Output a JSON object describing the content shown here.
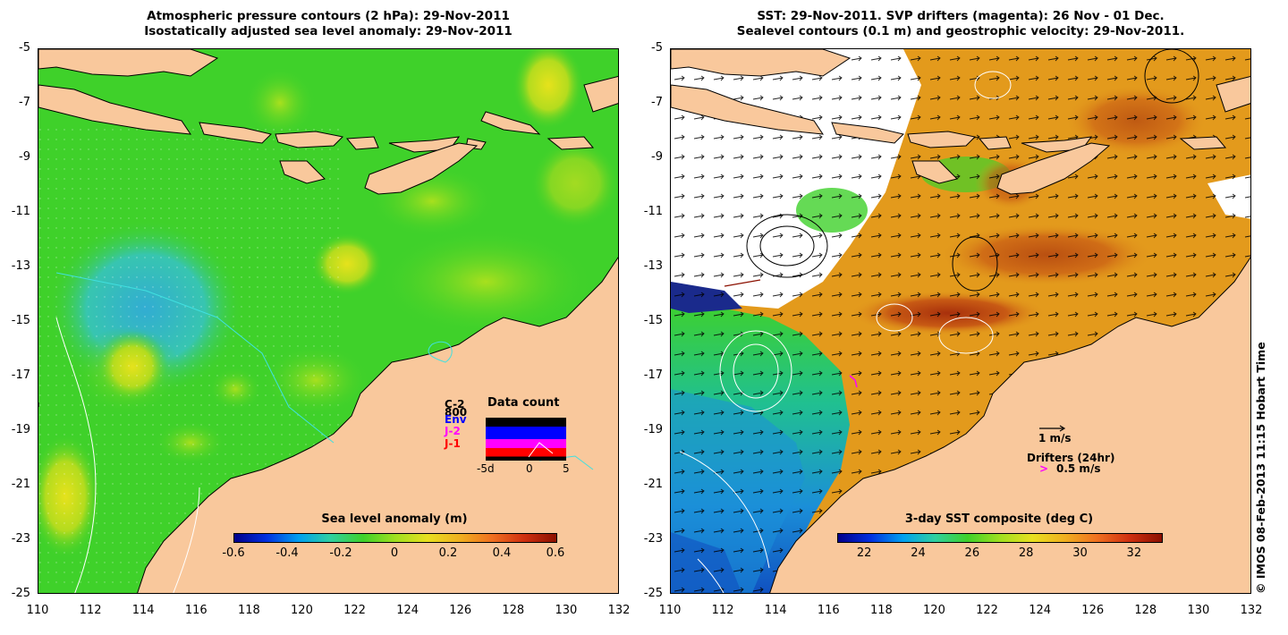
{
  "left_panel": {
    "title_line1": "Atmospheric pressure contours (2 hPa): 29-Nov-2011",
    "title_line2": "Isostatically adjusted sea level anomaly: 29-Nov-2011",
    "colorbar_label": "Sea level anomaly (m)",
    "colorbar_ticks": [
      "-0.6",
      "-0.4",
      "-0.2",
      "0",
      "0.2",
      "0.4",
      "0.6"
    ],
    "colorbar_range": [
      -0.6,
      0.6
    ],
    "colors": {
      "ocean": "#3fd12a",
      "land": "#f9c89c",
      "coast": "#000000",
      "depth_contour": "#40e0e0",
      "pressure_contour": "#ffffff"
    },
    "inset": {
      "title": "Data count",
      "mission_labels": [
        "C-2",
        "800",
        "Env",
        "J-2",
        "J-1"
      ],
      "mission_colors": [
        "#000000",
        "#000000",
        "#0000ff",
        "#ff00ff",
        "#ff0000"
      ],
      "x_ticks": [
        "-5d",
        "0",
        "5"
      ]
    }
  },
  "right_panel": {
    "title_line1": "SST: 29-Nov-2011. SVP drifters (magenta): 26 Nov - 01 Dec.",
    "title_line2": "Sealevel contours (0.1 m) and geostrophic velocity: 29-Nov-2011.",
    "colorbar_label": "3-day SST composite (deg C)",
    "colorbar_ticks": [
      "22",
      "24",
      "26",
      "28",
      "30",
      "32"
    ],
    "colorbar_range": [
      21,
      33
    ],
    "velocity_scale_label": "1 m/s",
    "drifter_label": "Drifters (24hr)",
    "drifter_scale_label": "0.5 m/s",
    "colors": {
      "warm_sst": "#e39a1c",
      "hot_sst": "#b8400e",
      "cool_sst": "#1b8fd8",
      "cloud": "#ffffff",
      "land": "#f9c89c",
      "drifter": "#ff00ff"
    }
  },
  "axes": {
    "y_ticks": [
      "-5",
      "-7",
      "-9",
      "-11",
      "-13",
      "-15",
      "-17",
      "-19",
      "-21",
      "-23",
      "-25"
    ],
    "x_ticks": [
      "110",
      "112",
      "114",
      "116",
      "118",
      "120",
      "122",
      "124",
      "126",
      "128",
      "130",
      "132"
    ],
    "lat_range": [
      -25,
      -5
    ],
    "lon_range": [
      110,
      132
    ]
  },
  "credit": "© IMOS 08-Feb-2013 11:15 Hobart Time"
}
